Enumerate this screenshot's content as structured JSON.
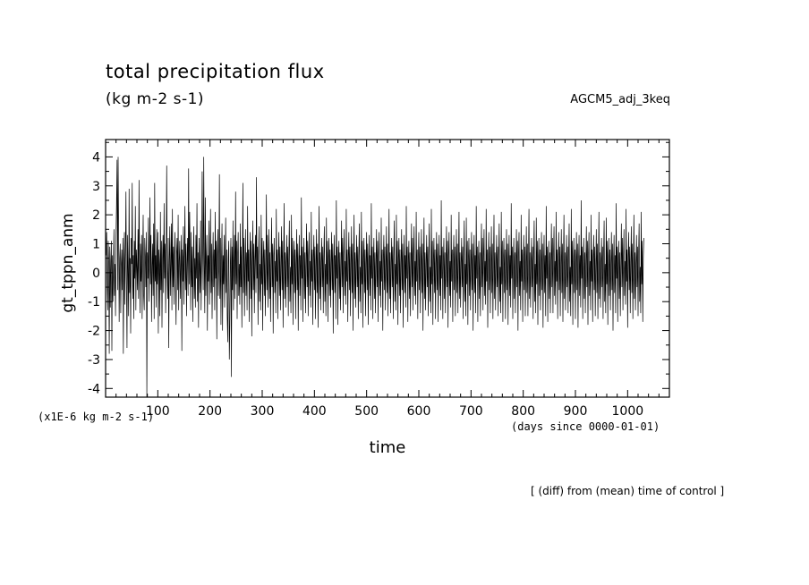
{
  "chart_data": {
    "type": "line",
    "title": "total precipitation flux",
    "subtitle": "(kg m-2 s-1)",
    "dataset_label": "AGCM5_adj_3keq",
    "xlabel": "time",
    "ylabel": "gt_tppn_anm",
    "x_units": "(days since 0000-01-01)",
    "y_units": "(x1E-6 kg m-2 s-1)",
    "footnote": "[ (diff) from (mean) time of control ]",
    "xlim": [
      0,
      1080
    ],
    "ylim": [
      -4.3,
      4.6
    ],
    "x_ticks": [
      100,
      200,
      300,
      400,
      500,
      600,
      700,
      800,
      900,
      1000
    ],
    "y_ticks": [
      -4,
      -3,
      -2,
      -1,
      0,
      1,
      2,
      3,
      4
    ],
    "grid": false,
    "line_color": "#000000",
    "series": [
      {
        "x_start": 1,
        "x_step": 1,
        "values": [
          0.6,
          1.4,
          -0.5,
          -1.3,
          1.1,
          0.3,
          -2.8,
          0.9,
          -1.2,
          0.4,
          1.1,
          -2.7,
          0.6,
          -1.0,
          0.2,
          1.5,
          -0.8,
          0.3,
          -1.5,
          1.3,
          2.4,
          3.9,
          -0.6,
          4.0,
          1.2,
          -1.7,
          0.5,
          1.0,
          -1.4,
          0.2,
          0.8,
          -0.6,
          1.2,
          -2.8,
          0.3,
          1.4,
          -1.1,
          0.7,
          2.8,
          -0.4,
          -2.6,
          1.3,
          0.1,
          -1.5,
          2.9,
          -0.7,
          0.5,
          -2.1,
          1.2,
          0.3,
          3.1,
          -0.9,
          0.6,
          -1.6,
          1.1,
          -0.2,
          2.3,
          -1.3,
          0.8,
          0.2,
          -0.6,
          1.5,
          -0.9,
          3.2,
          0.4,
          -1.4,
          1.0,
          -0.3,
          1.3,
          -1.6,
          0.5,
          2.0,
          -0.8,
          -1.3,
          1.2,
          0.6,
          -0.5,
          1.4,
          -4.3,
          0.7,
          -0.2,
          1.9,
          -1.0,
          0.3,
          2.6,
          -0.4,
          1.3,
          -1.7,
          0.2,
          1.0,
          -0.8,
          1.7,
          -1.6,
          3.1,
          -0.3,
          0.6,
          -1.2,
          1.5,
          -0.4,
          1.4,
          -2.1,
          0.8,
          0.3,
          -1.5,
          2.1,
          -0.6,
          1.1,
          -1.9,
          0.4,
          1.3,
          -0.7,
          2.4,
          -0.2,
          1.0,
          -1.4,
          0.5,
          3.7,
          0.2,
          -0.9,
          1.2,
          -2.6,
          0.4,
          1.6,
          -0.8,
          0.3,
          1.7,
          -1.3,
          2.2,
          -0.5,
          0.9,
          -1.1,
          0.6,
          1.4,
          -0.3,
          -1.8,
          0.7,
          1.2,
          -0.6,
          2.0,
          -1.3,
          0.4,
          1.1,
          -0.9,
          0.2,
          1.3,
          -2.7,
          0.8,
          -0.3,
          1.6,
          -1.1,
          0.5,
          2.3,
          -0.6,
          1.0,
          -1.5,
          0.3,
          1.2,
          -0.8,
          3.6,
          -0.4,
          2.1,
          0.6,
          -1.3,
          1.4,
          -0.5,
          0.9,
          -1.7,
          0.3,
          1.6,
          -0.9,
          0.5,
          -1.2,
          1.3,
          -0.2,
          2.4,
          -1.0,
          0.7,
          -1.9,
          1.2,
          0.2,
          -0.7,
          1.8,
          -1.3,
          0.4,
          3.5,
          0.8,
          -0.6,
          4.0,
          0.3,
          -1.4,
          2.6,
          -0.8,
          0.5,
          1.3,
          -2.0,
          0.6,
          -0.3,
          1.8,
          -1.1,
          0.4,
          2.2,
          -0.7,
          1.0,
          -1.6,
          0.3,
          1.4,
          -0.5,
          0.8,
          -1.3,
          2.1,
          -0.2,
          1.1,
          -2.3,
          0.6,
          1.5,
          -0.8,
          0.2,
          3.4,
          -0.9,
          1.2,
          -1.8,
          0.4,
          1.7,
          -2.0,
          0.6,
          -0.4,
          1.3,
          -1.2,
          0.3,
          1.9,
          -0.7,
          0.8,
          -1.5,
          -2.4,
          0.5,
          1.1,
          -3.0,
          -1.8,
          0.4,
          1.2,
          -3.6,
          0.9,
          -0.6,
          1.8,
          -1.3,
          0.2,
          1.3,
          -0.9,
          2.8,
          -0.4,
          1.1,
          -1.6,
          0.6,
          1.4,
          -0.8,
          0.3,
          -1.1,
          1.7,
          -0.5,
          0.9,
          -1.9,
          0.4,
          3.1,
          -0.7,
          1.2,
          -1.5,
          0.2,
          1.5,
          -0.8,
          0.7,
          -1.3,
          2.3,
          -0.3,
          0.8,
          -1.7,
          0.5,
          1.4,
          -0.9,
          1.1,
          -2.2,
          0.3,
          1.8,
          -0.6,
          1.0,
          -1.4,
          0.4,
          1.3,
          -0.7,
          3.3,
          -0.2,
          0.9,
          -1.8,
          0.6,
          1.6,
          -1.0,
          0.3,
          -1.3,
          2.0,
          -0.4,
          1.2,
          -2.0,
          0.5,
          1.1,
          -0.8,
          0.8,
          -1.5,
          0.2,
          2.7,
          -0.6,
          1.3,
          -1.2,
          0.4,
          1.5,
          -0.9,
          0.7,
          -1.7,
          0.3,
          1.9,
          -0.5,
          1.0,
          -2.1,
          0.6,
          1.2,
          -0.7,
          0.4,
          -1.4,
          2.2,
          -0.3,
          0.8,
          -1.6,
          0.5,
          1.4,
          -0.8,
          0.9,
          -1.3,
          0.2,
          1.6,
          -0.6,
          1.1,
          -1.9,
          0.4,
          2.4,
          -0.9,
          0.7,
          -1.2,
          0.3,
          1.3,
          -0.5,
          0.9,
          -1.5,
          0.6,
          1.8,
          -1.0,
          0.2,
          -1.4,
          2.0,
          -0.4,
          1.2,
          -1.8,
          0.5,
          1.1,
          -0.7,
          0.8,
          -1.6,
          0.3,
          1.5,
          -0.6,
          1.0,
          -2.0,
          0.4,
          1.3,
          -0.8,
          0.6,
          -1.3,
          2.6,
          -0.2,
          0.9,
          -1.7,
          0.5,
          1.2,
          -0.9,
          0.7,
          -1.4,
          0.3,
          1.7,
          -0.5,
          1.1,
          -1.5,
          0.6,
          1.4,
          -0.8,
          0.4,
          -1.2,
          2.1,
          -0.3,
          0.8,
          -1.8,
          0.5,
          1.3,
          -0.6,
          0.9,
          -1.6,
          0.2,
          1.5,
          -0.7,
          1.0,
          -1.9,
          0.4,
          2.3,
          -0.9,
          0.7,
          -1.3,
          0.3,
          1.2,
          -0.5,
          0.9,
          -1.4,
          0.6,
          1.6,
          -1.0,
          0.3,
          -1.5,
          1.9,
          -0.4,
          1.1,
          -1.7,
          0.5,
          1.2,
          -0.8,
          0.8,
          -1.2,
          0.3,
          1.4,
          -0.6,
          1.0,
          -2.1,
          0.4,
          1.3,
          -0.7,
          0.6,
          -1.6,
          2.5,
          -0.2,
          0.9,
          -1.8,
          0.5,
          1.1,
          -0.9,
          0.7,
          -1.3,
          0.2,
          1.8,
          -0.5,
          1.2,
          -1.4,
          0.6,
          1.5,
          -0.8,
          0.4,
          -1.1,
          2.2,
          -0.3,
          0.8,
          -1.7,
          0.5,
          1.4,
          -0.6,
          0.9,
          -1.5,
          0.3,
          1.6,
          -0.7,
          1.0,
          -2.0,
          0.4,
          2.0,
          -0.9,
          0.7,
          -1.2,
          0.3,
          1.3,
          -0.5,
          0.9,
          -1.6,
          0.6,
          1.7,
          -1.0,
          0.2,
          -1.4,
          2.1,
          -0.4,
          1.1,
          -1.9,
          0.5,
          1.2,
          -0.7,
          0.8,
          -1.5,
          0.3,
          1.4,
          -0.6,
          1.0,
          -1.8,
          0.4,
          1.3,
          -0.8,
          0.6,
          -1.3,
          2.4,
          -0.2,
          0.9,
          -1.6,
          0.5,
          1.2,
          -0.9,
          0.7,
          -1.4,
          0.3,
          1.5,
          -0.5,
          1.1,
          -1.7,
          0.6,
          1.4,
          -0.8,
          0.4,
          -1.2,
          1.9,
          -0.3,
          0.8,
          -2.0,
          0.5,
          1.3,
          -0.6,
          0.9,
          -1.3,
          0.2,
          1.6,
          -0.7,
          1.0,
          -1.5,
          0.4,
          2.2,
          -0.9,
          0.7,
          -1.4,
          0.3,
          1.2,
          -0.5,
          0.9,
          -1.6,
          0.6,
          1.8,
          -1.0,
          0.3,
          -1.3,
          2.0,
          -0.4,
          1.1,
          -1.8,
          0.5,
          1.2,
          -0.8,
          0.8,
          -1.4,
          0.3,
          1.5,
          -0.6,
          1.0,
          -1.9,
          0.4,
          1.3,
          -0.7,
          0.6,
          -1.2,
          2.3,
          -0.2,
          0.9,
          -1.7,
          0.5,
          1.1,
          -0.9,
          0.7,
          -1.5,
          0.2,
          1.7,
          -0.5,
          1.2,
          -1.3,
          0.6,
          1.6,
          -0.8,
          0.4,
          -1.1,
          2.1,
          -0.3,
          0.8,
          -1.6,
          0.5,
          1.4,
          -0.6,
          0.9,
          -1.4,
          0.3,
          1.5,
          -0.7,
          1.0,
          -2.0,
          0.4,
          1.9,
          -0.9,
          0.7,
          -1.3,
          0.3,
          1.3,
          -0.5,
          0.9,
          -1.5,
          0.6,
          1.7,
          -1.0,
          0.2,
          -1.4,
          2.2,
          -0.4,
          1.1,
          -1.8,
          0.5,
          1.2,
          -0.7,
          0.8,
          -1.6,
          0.3,
          1.4,
          -0.6,
          1.0,
          -1.7,
          0.4,
          1.3,
          -0.8,
          0.6,
          -1.3,
          2.5,
          -0.2,
          0.9,
          -1.6,
          0.5,
          1.2,
          -0.9,
          0.7,
          -1.4,
          0.3,
          1.6,
          -0.5,
          1.1,
          -1.9,
          0.6,
          1.4,
          -0.8,
          0.4,
          -1.2,
          2.0,
          -0.3,
          0.8,
          -1.7,
          0.5,
          1.3,
          -0.6,
          0.9,
          -1.5,
          0.2,
          1.5,
          -0.7,
          1.0,
          -1.4,
          0.4,
          2.1,
          -0.9,
          0.7,
          -1.2,
          0.3,
          1.2,
          -0.5,
          0.9,
          -1.6,
          0.6,
          1.8,
          -1.0,
          0.3,
          -1.5,
          1.9,
          -0.4,
          1.1,
          -1.8,
          0.5,
          1.2,
          -0.8,
          0.8,
          -1.3,
          0.3,
          1.4,
          -0.6,
          1.0,
          -2.0,
          0.4,
          1.3,
          -0.7,
          0.6,
          -1.4,
          2.3,
          -0.2,
          0.9,
          -1.7,
          0.5,
          1.1,
          -0.9,
          0.7,
          -1.5,
          0.2,
          1.7,
          -0.5,
          1.2,
          -1.3,
          0.6,
          1.5,
          -0.8,
          0.4,
          -1.1,
          2.2,
          -0.3,
          0.8,
          -1.9,
          0.5,
          1.4,
          -0.6,
          0.9,
          -1.4,
          0.3,
          1.6,
          -0.7,
          1.0,
          -1.6,
          0.4,
          2.0,
          -0.9,
          0.7,
          -1.3,
          0.3,
          1.3,
          -0.5,
          0.9,
          -1.5,
          0.6,
          1.7,
          -1.0,
          0.2,
          -1.4,
          2.1,
          -0.4,
          1.1,
          -1.7,
          0.5,
          1.2,
          -0.7,
          0.8,
          -1.6,
          0.3,
          1.5,
          -0.6,
          1.0,
          -1.8,
          0.4,
          1.3,
          -0.8,
          0.6,
          -1.2,
          2.4,
          -0.2,
          0.9,
          -1.6,
          0.5,
          1.2,
          -0.9,
          0.7,
          -1.4,
          0.3,
          1.5,
          -0.5,
          1.1,
          -2.0,
          0.6,
          1.4,
          -0.8,
          0.4,
          -1.3,
          2.0,
          -0.3,
          0.8,
          -1.7,
          0.5,
          1.3,
          -0.6,
          0.9,
          -1.5,
          0.2,
          1.6,
          -0.7,
          1.0,
          -1.5,
          0.4,
          2.2,
          -0.9,
          0.7,
          -1.2,
          0.3,
          1.2,
          -0.5,
          0.9,
          -1.6,
          0.6,
          1.8,
          -1.0,
          0.3,
          -1.4,
          1.9,
          -0.4,
          1.1,
          -1.8,
          0.5,
          1.2,
          -0.8,
          0.8,
          -1.3,
          0.3,
          1.4,
          -0.6,
          1.0,
          -1.9,
          0.4,
          1.3,
          -0.7,
          0.6,
          -1.5,
          2.3,
          -0.2,
          0.9,
          -1.7,
          0.5,
          1.1,
          -0.9,
          0.7,
          -1.4,
          0.2,
          1.7,
          -0.5,
          1.2,
          -1.4,
          0.6,
          1.6,
          -0.8,
          0.4,
          -1.1,
          2.1,
          -0.3,
          0.8,
          -1.6,
          0.5,
          1.4,
          -0.6,
          0.9,
          -1.5,
          0.3,
          1.5,
          -0.7,
          1.0,
          -1.7,
          0.4,
          2.0,
          -0.9,
          0.7,
          -1.3,
          0.3,
          1.3,
          -0.5,
          0.9,
          -1.4,
          0.6,
          1.7,
          -1.0,
          0.2,
          -1.5,
          2.2,
          -0.4,
          1.1,
          -1.8,
          0.5,
          1.2,
          -0.7,
          0.8,
          -1.6,
          0.3,
          1.4,
          -0.6,
          1.0,
          -1.9,
          0.4,
          1.3,
          -0.8,
          0.6,
          -1.2,
          2.5,
          -0.2,
          0.9,
          -1.6,
          0.5,
          1.2,
          -0.9,
          0.7,
          -1.4,
          0.3,
          1.6,
          -0.5,
          1.1,
          -1.8,
          0.6,
          1.4,
          -0.8,
          0.4,
          -1.3,
          2.0,
          -0.3,
          0.8,
          -1.7,
          0.5,
          1.3,
          -0.6,
          0.9,
          -1.5,
          0.2,
          1.5,
          -0.7,
          1.0,
          -1.6,
          0.4,
          2.1,
          -0.9,
          0.7,
          -1.2,
          0.3,
          1.2,
          -0.5,
          0.9,
          -1.6,
          0.6,
          1.8,
          -1.0,
          0.3,
          -1.4,
          1.9,
          -0.4,
          1.1,
          -1.8,
          0.5,
          1.2,
          -0.8,
          0.8,
          -1.3,
          0.3,
          1.4,
          -0.6,
          1.0,
          -2.0,
          0.4,
          1.3,
          -0.7,
          0.6,
          -1.4,
          2.4,
          -0.2,
          0.9,
          -1.7,
          0.5,
          1.1,
          -0.9,
          0.7,
          -1.5,
          0.2,
          1.7,
          -0.5,
          1.2,
          -1.3,
          0.6,
          1.5,
          -0.8,
          0.4,
          -1.1,
          2.2,
          -0.3,
          0.8,
          -1.9,
          0.5,
          1.4,
          -0.6,
          0.9,
          -1.4,
          0.3,
          1.6,
          -0.7,
          1.0,
          -1.6,
          0.4,
          2.0,
          -0.9,
          0.7,
          -1.3,
          0.3,
          1.3,
          -0.5,
          0.9,
          -1.5,
          0.6,
          1.7,
          -1.0,
          0.2,
          -1.4,
          2.1,
          -0.4,
          1.1,
          -1.7,
          0.5,
          1.2
        ]
      }
    ]
  }
}
